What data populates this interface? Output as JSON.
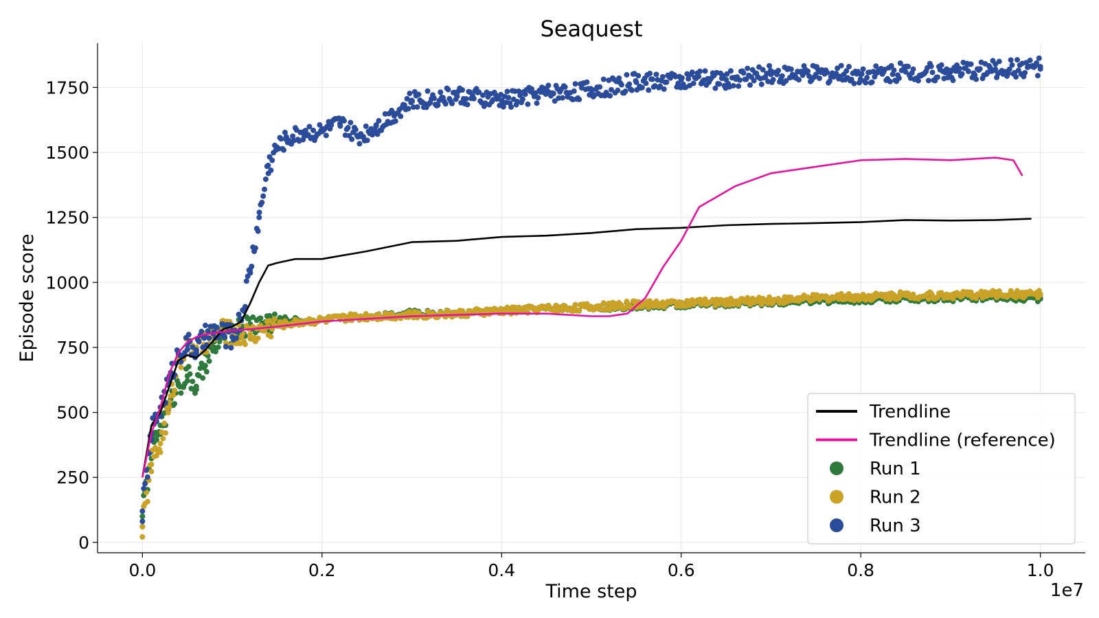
{
  "chart_data": {
    "type": "scatter",
    "title": "Seaquest",
    "xlabel": "Time step",
    "ylabel": "Episode score",
    "x_offset_label": "1e7",
    "xlim": [
      -0.05,
      1.05
    ],
    "ylim": [
      -40,
      1920
    ],
    "x_ticks": [
      0.0,
      0.2,
      0.4,
      0.6,
      0.8,
      1.0
    ],
    "x_tick_labels": [
      "0.0",
      "0.2",
      "0.4",
      "0.6",
      "0.8",
      "1.0"
    ],
    "y_ticks": [
      0,
      250,
      500,
      750,
      1000,
      1250,
      1500,
      1750
    ],
    "y_tick_labels": [
      "0",
      "250",
      "500",
      "750",
      "1000",
      "1250",
      "1500",
      "1750"
    ],
    "grid": true,
    "legend_position": "lower-right",
    "legend": [
      {
        "label": "Trendline",
        "kind": "line",
        "color": "#000000"
      },
      {
        "label": "Trendline (reference)",
        "kind": "line",
        "color": "#e8109f"
      },
      {
        "label": "Run 1",
        "kind": "marker",
        "color": "#2e7a3c"
      },
      {
        "label": "Run 2",
        "kind": "marker",
        "color": "#c9a227"
      },
      {
        "label": "Run 3",
        "kind": "marker",
        "color": "#2b4b9b"
      }
    ],
    "series": [
      {
        "name": "Run 1",
        "kind": "scatter",
        "color": "#2e7a3c",
        "x": [
          0.0,
          0.01,
          0.02,
          0.03,
          0.04,
          0.05,
          0.06,
          0.07,
          0.08,
          0.09,
          0.1,
          0.12,
          0.14,
          0.16,
          0.18,
          0.2,
          0.25,
          0.3,
          0.35,
          0.4,
          0.45,
          0.5,
          0.55,
          0.6,
          0.65,
          0.7,
          0.75,
          0.8,
          0.85,
          0.9,
          0.95,
          1.0
        ],
        "y": [
          100,
          350,
          450,
          520,
          610,
          640,
          600,
          680,
          750,
          790,
          810,
          840,
          850,
          855,
          850,
          855,
          870,
          880,
          880,
          890,
          900,
          905,
          910,
          915,
          920,
          925,
          930,
          935,
          940,
          940,
          945,
          940
        ]
      },
      {
        "name": "Run 2",
        "kind": "scatter",
        "color": "#c9a227",
        "x": [
          0.0,
          0.01,
          0.02,
          0.03,
          0.04,
          0.05,
          0.06,
          0.07,
          0.08,
          0.09,
          0.1,
          0.12,
          0.14,
          0.16,
          0.18,
          0.2,
          0.25,
          0.3,
          0.35,
          0.4,
          0.45,
          0.5,
          0.55,
          0.6,
          0.65,
          0.7,
          0.75,
          0.8,
          0.85,
          0.9,
          0.95,
          1.0
        ],
        "y": [
          60,
          300,
          380,
          520,
          700,
          760,
          750,
          760,
          800,
          815,
          800,
          800,
          830,
          840,
          850,
          855,
          870,
          875,
          880,
          890,
          900,
          905,
          915,
          920,
          925,
          930,
          940,
          945,
          950,
          950,
          955,
          955
        ]
      },
      {
        "name": "Run 3",
        "kind": "scatter",
        "color": "#2b4b9b",
        "x": [
          0.0,
          0.01,
          0.02,
          0.03,
          0.04,
          0.05,
          0.06,
          0.07,
          0.08,
          0.09,
          0.1,
          0.11,
          0.12,
          0.13,
          0.14,
          0.15,
          0.16,
          0.18,
          0.2,
          0.22,
          0.24,
          0.26,
          0.28,
          0.3,
          0.35,
          0.4,
          0.45,
          0.5,
          0.55,
          0.6,
          0.65,
          0.7,
          0.75,
          0.8,
          0.85,
          0.9,
          0.95,
          1.0
        ],
        "y": [
          120,
          420,
          520,
          620,
          730,
          760,
          740,
          790,
          810,
          800,
          790,
          860,
          1050,
          1250,
          1450,
          1520,
          1550,
          1580,
          1580,
          1610,
          1560,
          1600,
          1650,
          1700,
          1720,
          1700,
          1730,
          1740,
          1770,
          1780,
          1780,
          1800,
          1800,
          1800,
          1810,
          1810,
          1820,
          1830
        ]
      },
      {
        "name": "Trendline",
        "kind": "line",
        "color": "#000000",
        "x": [
          0.0,
          0.01,
          0.02,
          0.03,
          0.04,
          0.05,
          0.06,
          0.07,
          0.08,
          0.09,
          0.1,
          0.11,
          0.12,
          0.13,
          0.14,
          0.15,
          0.17,
          0.2,
          0.25,
          0.3,
          0.35,
          0.4,
          0.45,
          0.5,
          0.55,
          0.6,
          0.65,
          0.7,
          0.75,
          0.8,
          0.85,
          0.9,
          0.95,
          0.99
        ],
        "y": [
          250,
          450,
          500,
          600,
          700,
          720,
          710,
          740,
          780,
          820,
          830,
          850,
          920,
          1000,
          1065,
          1075,
          1090,
          1090,
          1120,
          1155,
          1160,
          1175,
          1180,
          1190,
          1205,
          1210,
          1220,
          1225,
          1228,
          1232,
          1240,
          1238,
          1240,
          1245
        ]
      },
      {
        "name": "Trendline (reference)",
        "kind": "line",
        "color": "#e8109f",
        "x": [
          0.0,
          0.01,
          0.02,
          0.03,
          0.04,
          0.05,
          0.06,
          0.07,
          0.08,
          0.09,
          0.1,
          0.12,
          0.15,
          0.2,
          0.25,
          0.3,
          0.35,
          0.4,
          0.45,
          0.5,
          0.52,
          0.54,
          0.56,
          0.58,
          0.6,
          0.62,
          0.64,
          0.66,
          0.7,
          0.75,
          0.8,
          0.85,
          0.9,
          0.95,
          0.97,
          0.98
        ],
        "y": [
          250,
          420,
          520,
          650,
          730,
          770,
          790,
          800,
          805,
          810,
          815,
          820,
          830,
          850,
          860,
          870,
          875,
          880,
          880,
          870,
          870,
          880,
          940,
          1060,
          1160,
          1290,
          1330,
          1370,
          1420,
          1445,
          1470,
          1475,
          1470,
          1480,
          1470,
          1410
        ]
      }
    ]
  }
}
